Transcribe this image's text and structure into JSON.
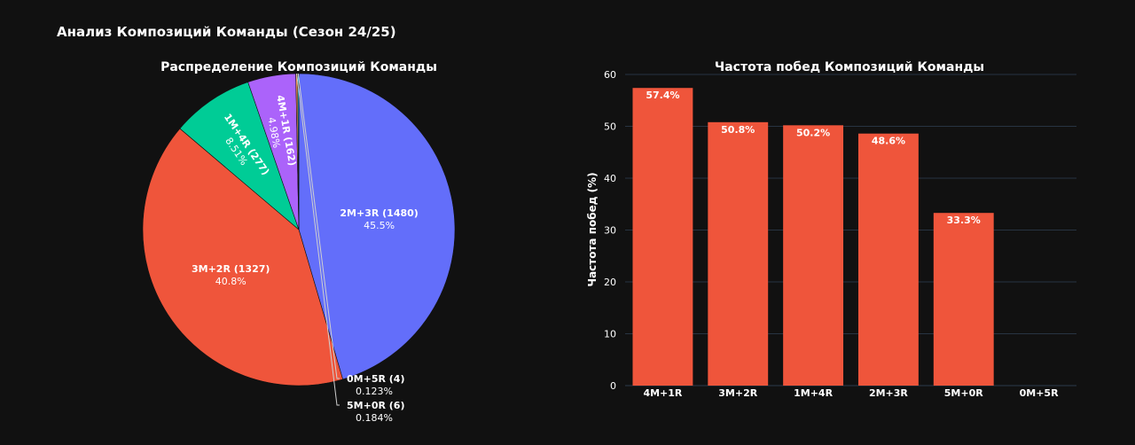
{
  "title": "Анализ Композиций Команды (Сезон 24/25)",
  "colors": {
    "background": "#111111",
    "text": "#ffffff",
    "tick": "#ffffff",
    "grid": "#283442",
    "bar": "#EF553B"
  },
  "chart_data": [
    {
      "type": "pie",
      "title": "Распределение Композиций Команды",
      "slices": [
        {
          "label": "2M+3R",
          "count": 1480,
          "count_text": "(1480)",
          "percent_text": "45.5%",
          "color": "#636EFA"
        },
        {
          "label": "3M+2R",
          "count": 1327,
          "count_text": "(1327)",
          "percent_text": "40.8%",
          "color": "#EF553B"
        },
        {
          "label": "1M+4R",
          "count": 277,
          "count_text": "(277)",
          "percent_text": "8.51%",
          "color": "#00CC96"
        },
        {
          "label": "4M+1R",
          "count": 162,
          "count_text": "(162)",
          "percent_text": "4.98%",
          "color": "#AB63FA"
        },
        {
          "label": "5M+0R",
          "count": 6,
          "count_text": "(6)",
          "percent_text": "0.184%",
          "color": "#FFA15A"
        },
        {
          "label": "0M+5R",
          "count": 4,
          "count_text": "(4)",
          "percent_text": "0.123%",
          "color": "#19D3F3"
        }
      ]
    },
    {
      "type": "bar",
      "title": "Частота побед Композиций Команды",
      "xlabel": "",
      "ylabel": "Частота побед (%)",
      "ylim": [
        0,
        60
      ],
      "yticks": [
        "0",
        "10",
        "20",
        "30",
        "40",
        "50",
        "60"
      ],
      "categories": [
        "4M+1R",
        "3M+2R",
        "1M+4R",
        "2M+3R",
        "5M+0R",
        "0M+5R"
      ],
      "values": [
        57.4,
        50.8,
        50.2,
        48.6,
        33.3,
        0
      ],
      "value_labels": [
        "57.4%",
        "50.8%",
        "50.2%",
        "48.6%",
        "33.3%",
        ""
      ],
      "grid": true
    }
  ]
}
